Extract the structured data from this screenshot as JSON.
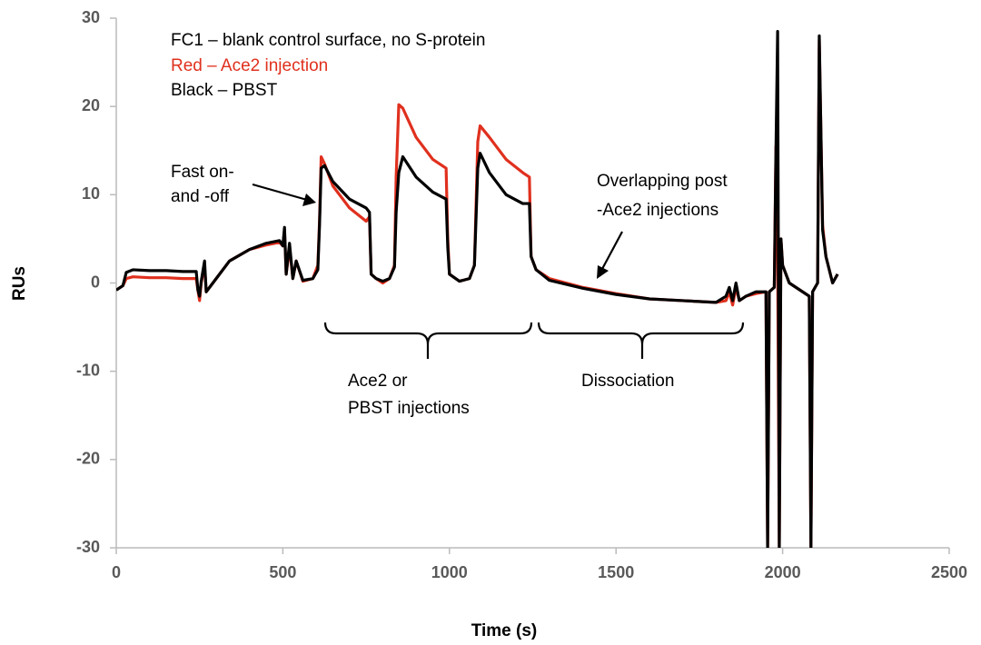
{
  "chart_data": {
    "type": "line",
    "xlabel": "Time (s)",
    "ylabel": "RUs",
    "xlim": [
      0,
      2500
    ],
    "xticks": [
      0,
      500,
      1000,
      1500,
      2000,
      2500
    ],
    "ylim": [
      -30,
      30
    ],
    "yticks": [
      -30,
      -20,
      -10,
      0,
      10,
      20,
      30
    ],
    "grid": false,
    "annotations": [
      [
        "FC1 – blank control surface, no S-protein"
      ],
      [
        "Fast on-",
        "and -off"
      ],
      [
        "Overlapping post",
        "-Ace2 injections"
      ],
      [
        "Ace2 or",
        "PBST injections"
      ],
      [
        "Dissociation"
      ]
    ],
    "x": [
      0,
      20,
      30,
      50,
      100,
      150,
      200,
      240,
      245,
      250,
      255,
      265,
      270,
      280,
      300,
      340,
      400,
      450,
      490,
      500,
      505,
      510,
      520,
      530,
      540,
      560,
      590,
      605,
      610,
      615,
      625,
      650,
      700,
      750,
      760,
      765,
      780,
      800,
      820,
      835,
      840,
      848,
      860,
      900,
      950,
      990,
      995,
      1000,
      1030,
      1060,
      1075,
      1085,
      1092,
      1120,
      1170,
      1220,
      1240,
      1245,
      1260,
      1300,
      1400,
      1500,
      1600,
      1700,
      1800,
      1830,
      1840,
      1850,
      1860,
      1870,
      1890,
      1920,
      1950,
      1955,
      1960,
      1975,
      1980,
      1985,
      1990,
      1995,
      2000,
      2020,
      2080,
      2085,
      2090,
      2105,
      2110,
      2120,
      2130,
      2150,
      2165
    ],
    "series": [
      {
        "name": "Red – Ace2 injection",
        "color": "#e0301e",
        "values": [
          -0.8,
          -0.3,
          0.5,
          0.7,
          0.6,
          0.6,
          0.5,
          0.5,
          -0.8,
          -2.0,
          0.0,
          2.0,
          -1.0,
          -0.5,
          0.5,
          2.5,
          3.8,
          4.3,
          4.6,
          4.2,
          6.0,
          1.0,
          4.0,
          0.5,
          2.5,
          0.2,
          0.5,
          2.0,
          7.0,
          14.3,
          13.5,
          11.0,
          8.5,
          7.0,
          7.5,
          1.0,
          0.5,
          0.0,
          0.5,
          2.0,
          12.0,
          20.2,
          19.8,
          16.5,
          14.0,
          13.0,
          5.0,
          1.0,
          0.2,
          0.5,
          2.0,
          16.0,
          17.8,
          16.5,
          14.0,
          12.5,
          12.0,
          3.0,
          1.5,
          0.5,
          -0.5,
          -1.2,
          -1.8,
          -2.0,
          -2.2,
          -2.0,
          -1.0,
          -2.5,
          -0.5,
          -2.0,
          -1.5,
          -1.2,
          -1.0,
          -30,
          -1.0,
          -0.5,
          15.5,
          3.0,
          -30,
          5.0,
          2.0,
          0.0,
          -1.5,
          -30,
          -1.0,
          0.0,
          27.5,
          6.5,
          3.0,
          0.0,
          1.0
        ]
      },
      {
        "name": "Black – PBST",
        "color": "#000000",
        "values": [
          -0.8,
          -0.3,
          1.2,
          1.5,
          1.4,
          1.4,
          1.3,
          1.3,
          -0.8,
          -1.5,
          0.2,
          2.5,
          -1.0,
          -0.5,
          0.5,
          2.5,
          3.8,
          4.5,
          4.8,
          4.2,
          6.3,
          1.0,
          4.5,
          0.5,
          2.5,
          0.3,
          0.5,
          1.5,
          6.5,
          13.0,
          13.3,
          11.5,
          9.5,
          8.5,
          8.0,
          1.0,
          0.5,
          0.2,
          0.5,
          1.8,
          8.0,
          12.5,
          14.3,
          12.0,
          10.3,
          9.5,
          4.0,
          1.0,
          0.2,
          0.5,
          2.0,
          13.0,
          14.7,
          12.5,
          10.0,
          9.0,
          9.0,
          3.0,
          1.5,
          0.3,
          -0.6,
          -1.3,
          -1.8,
          -2.0,
          -2.2,
          -1.5,
          -0.5,
          -2.0,
          0.0,
          -2.0,
          -1.5,
          -1.0,
          -1.0,
          -30,
          -1.0,
          -0.5,
          15.0,
          28.5,
          -30,
          5.0,
          2.0,
          0.0,
          -1.5,
          -30,
          -1.0,
          0.0,
          28.0,
          6.0,
          3.0,
          0.0,
          1.0
        ]
      }
    ]
  }
}
